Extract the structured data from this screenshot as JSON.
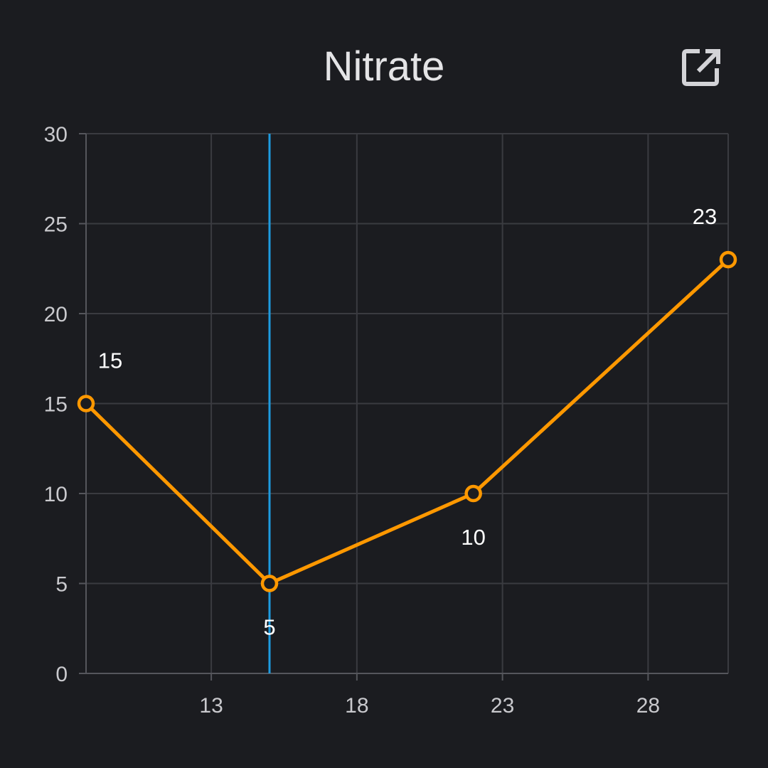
{
  "screen": {
    "title": "Nitrate",
    "open_icon": "open-in-new-icon"
  },
  "colors": {
    "background": "#1b1c20",
    "grid": "#3a3b40",
    "axis": "#55565c",
    "series": "#ff9800",
    "cursor": "#1e9be0",
    "tick_text": "#c9c9cd",
    "label_text": "#ffffff"
  },
  "chart_data": {
    "type": "line",
    "title": "Nitrate",
    "xlabel": "",
    "ylabel": "",
    "xlim": [
      8.7,
      30.75
    ],
    "ylim": [
      0,
      30
    ],
    "x_ticks": [
      13,
      18,
      23,
      28
    ],
    "y_ticks": [
      0,
      5,
      10,
      15,
      20,
      25,
      30
    ],
    "grid": true,
    "legend": "none",
    "cursor_x": 15,
    "series": [
      {
        "points": [
          {
            "x": 8.7,
            "y": 15,
            "label": "15",
            "label_pos": "above-right"
          },
          {
            "x": 15,
            "y": 5,
            "label": "5",
            "label_pos": "below"
          },
          {
            "x": 22,
            "y": 10,
            "label": "10",
            "label_pos": "below"
          },
          {
            "x": 30.75,
            "y": 23,
            "label": "23",
            "label_pos": "above-left"
          }
        ]
      }
    ]
  }
}
